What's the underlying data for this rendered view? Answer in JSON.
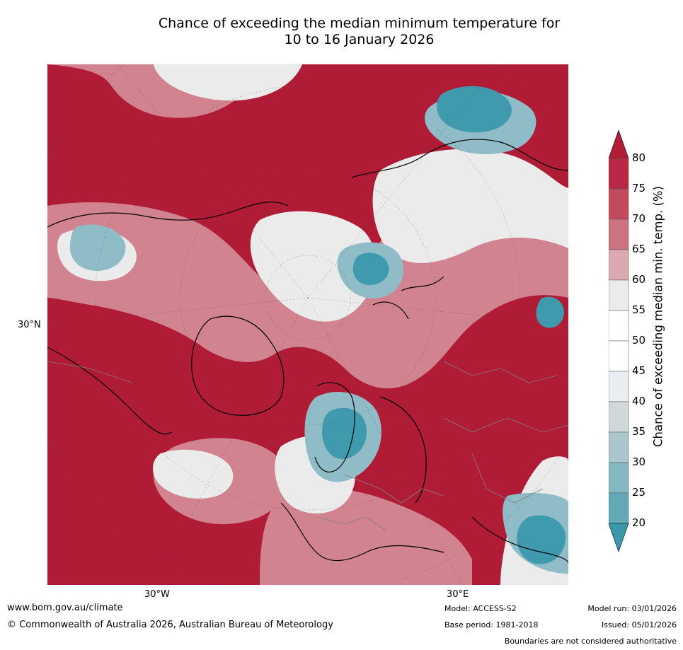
{
  "title_line1": "Chance of exceeding the median minimum temperature for",
  "title_line2": "10 to 16 January 2026",
  "map": {
    "lat_label": "30°N",
    "lon_label_west": "30°W",
    "lon_label_east": "30°E",
    "palette": {
      "very_high": "#b01b36",
      "high": "#c04a5a",
      "mid_high": "#d58f99",
      "near_median": "#ebebeb",
      "low": "#8fbcc6",
      "very_low": "#3f9aae",
      "land_outline": "#000000",
      "borders": "#808080"
    }
  },
  "colorbar": {
    "title": "Chance of exceeding median min. temp. (%)",
    "ticks": [
      "80",
      "75",
      "70",
      "65",
      "60",
      "55",
      "50",
      "45",
      "40",
      "35",
      "30",
      "25",
      "20"
    ],
    "colors": [
      "#b92845",
      "#c24a5c",
      "#cd737f",
      "#dba9b0",
      "#ebebeb",
      "#ffffff",
      "#ffffff",
      "#e8eef1",
      "#d0d8db",
      "#a9c7cd",
      "#86b8c3",
      "#63a9b8",
      "#3f9aae"
    ],
    "over_color": "#b01b36",
    "under_color": "#3a98ad"
  },
  "footer": {
    "url": "www.bom.gov.au/climate",
    "copyright": "© Commonwealth of Australia 2026, Australian Bureau of Meteorology",
    "model": "Model: ACCESS-S2",
    "base_period": "Base period: 1981-2018",
    "model_run": "Model run: 03/01/2026",
    "issued": "Issued: 05/01/2026",
    "disclaimer": "Boundaries are not considered authoritative"
  }
}
